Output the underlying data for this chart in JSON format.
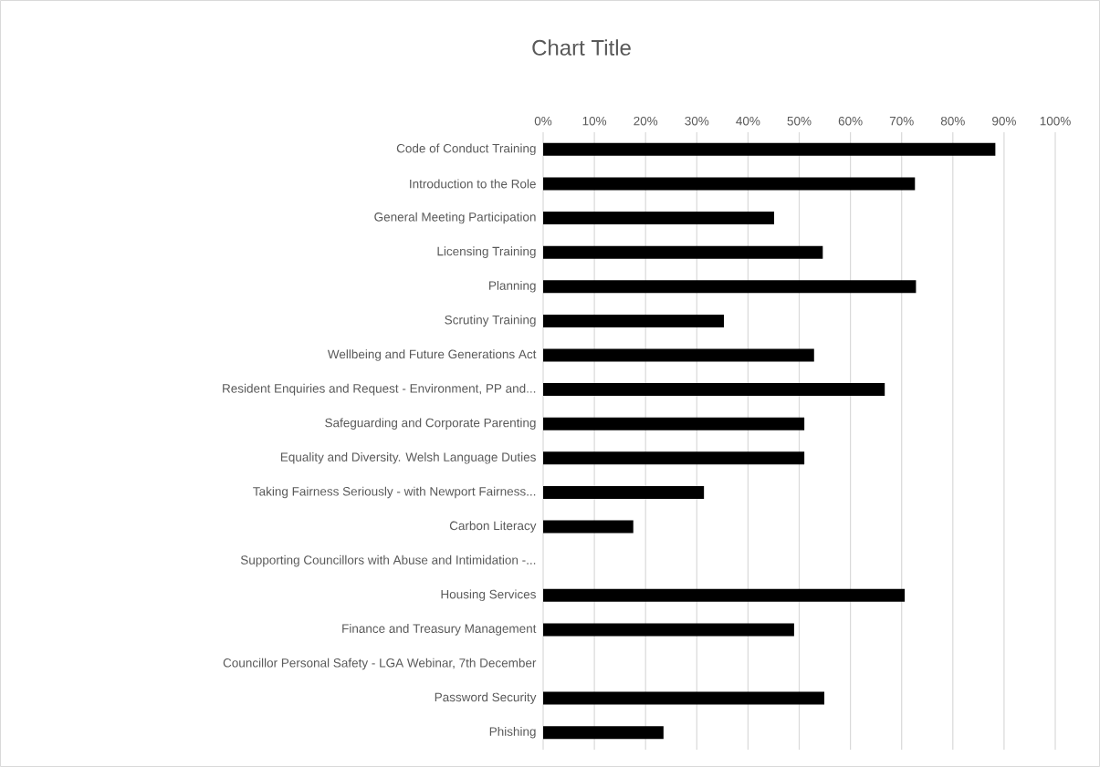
{
  "chart_data": {
    "type": "bar",
    "orientation": "horizontal",
    "title": "Chart Title",
    "categories": [
      "Code of Conduct Training",
      "Introduction to the  Role",
      "General Meeting Participation",
      "Licensing Training",
      "Planning",
      "Scrutiny Training",
      "Wellbeing and Future Generations Act",
      "Resident Enquiries and  Request - Environment,  PP and...",
      "Safeguarding and Corporate Parenting",
      "Equality and Diversity. Welsh Language Duties",
      "Taking Fairness Seriously - with Newport Fairness...",
      "Carbon Literacy",
      "Supporting Councillors with Abuse and Intimidation -...",
      "Housing Services",
      "Finance and Treasury Management",
      "Councillor Personal Safety - LGA Webinar, 7th December",
      "Password Security",
      "Phishing"
    ],
    "values": [
      88.3,
      72.6,
      45.1,
      54.6,
      72.8,
      35.3,
      52.9,
      66.7,
      51.0,
      51.0,
      31.4,
      17.6,
      null,
      70.6,
      49.0,
      null,
      54.9,
      23.5
    ],
    "color": "#000000",
    "xlim": [
      0,
      100
    ],
    "xticks": [
      {
        "value": 0,
        "label": "0%"
      },
      {
        "value": 10,
        "label": "10%"
      },
      {
        "value": 20,
        "label": "20%"
      },
      {
        "value": 30,
        "label": "30%"
      },
      {
        "value": 40,
        "label": "40%"
      },
      {
        "value": 50,
        "label": "50%"
      },
      {
        "value": 60,
        "label": "60%"
      },
      {
        "value": 70,
        "label": "70%"
      },
      {
        "value": 80,
        "label": "80%"
      },
      {
        "value": 90,
        "label": "90%"
      },
      {
        "value": 100,
        "label": "100%"
      }
    ],
    "grid": "x"
  }
}
